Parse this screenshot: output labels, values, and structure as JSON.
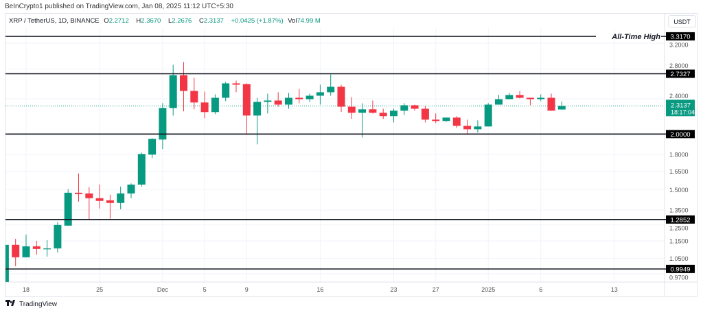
{
  "header": {
    "published": "BeInCrypto1 published on TradingView.com, Jan 08, 2025 11:12 UTC+5:30"
  },
  "legend": {
    "symbol": "XRP / TetherUS, 1D, BINANCE",
    "o_label": "O",
    "o": "2.2712",
    "h_label": "H",
    "h": "2.3670",
    "l_label": "L",
    "l": "2.2676",
    "c_label": "C",
    "c": "2.3137",
    "change": "+0.0425 (+1.87%)",
    "vol_label": "Vol",
    "vol": "74.99 M"
  },
  "currency_button": "USDT",
  "footer": {
    "brand": "TradingView",
    "logo_icon": "tradingview-logo-icon"
  },
  "colors": {
    "up": "#089981",
    "down": "#f23645",
    "level_line": "#131722",
    "price_badge": "#089981"
  },
  "chart_data": {
    "type": "candlestick",
    "title": "",
    "scale": "log",
    "ylim": [
      0.95,
      3.33
    ],
    "grid": true,
    "y_ticks": [
      "3.2000",
      "2.8000",
      "2.4000",
      "1.8000",
      "1.6500",
      "1.5000",
      "1.3500",
      "1.2500",
      "1.1500",
      "1.0500",
      "0.9700"
    ],
    "x_ticks": [
      {
        "label": "18",
        "date": "2024-11-18"
      },
      {
        "label": "25",
        "date": "2024-11-25"
      },
      {
        "label": "Dec",
        "date": "2024-12-01"
      },
      {
        "label": "5",
        "date": "2024-12-05"
      },
      {
        "label": "9",
        "date": "2024-12-09"
      },
      {
        "label": "16",
        "date": "2024-12-16"
      },
      {
        "label": "23",
        "date": "2024-12-23"
      },
      {
        "label": "27",
        "date": "2024-12-27"
      },
      {
        "label": "2025",
        "date": "2025-01-01"
      },
      {
        "label": "6",
        "date": "2025-01-06"
      },
      {
        "label": "13",
        "date": "2025-01-13"
      }
    ],
    "levels": [
      {
        "price": "3.3170",
        "label": "All-Time High"
      },
      {
        "price": "2.7327",
        "label": ""
      },
      {
        "price": "2.0000",
        "label": ""
      },
      {
        "price": "1.2852",
        "label": ""
      },
      {
        "price": "0.9949",
        "label": ""
      }
    ],
    "last_price": {
      "price": "2.3137",
      "countdown": "18:17:04"
    },
    "candles": [
      [
        "2024-11-16",
        0.93,
        1.272,
        0.93,
        1.127
      ],
      [
        "2024-11-17",
        1.127,
        1.163,
        1.009,
        1.057
      ],
      [
        "2024-11-18",
        1.057,
        1.189,
        1.057,
        1.119
      ],
      [
        "2024-11-19",
        1.119,
        1.151,
        1.072,
        1.103
      ],
      [
        "2024-11-20",
        1.103,
        1.155,
        1.061,
        1.107
      ],
      [
        "2024-11-21",
        1.107,
        1.267,
        1.084,
        1.249
      ],
      [
        "2024-11-22",
        1.245,
        1.503,
        1.245,
        1.476
      ],
      [
        "2024-11-23",
        1.476,
        1.631,
        1.41,
        1.466
      ],
      [
        "2024-11-24",
        1.471,
        1.519,
        1.281,
        1.435
      ],
      [
        "2024-11-25",
        1.435,
        1.54,
        1.36,
        1.415
      ],
      [
        "2024-11-26",
        1.42,
        1.46,
        1.29,
        1.4
      ],
      [
        "2024-11-27",
        1.4,
        1.524,
        1.355,
        1.471
      ],
      [
        "2024-11-28",
        1.471,
        1.549,
        1.435,
        1.54
      ],
      [
        "2024-11-29",
        1.54,
        1.817,
        1.524,
        1.804
      ],
      [
        "2024-11-30",
        1.798,
        1.958,
        1.766,
        1.951
      ],
      [
        "2024-12-01",
        1.944,
        2.347,
        1.85,
        2.289
      ],
      [
        "2024-12-02",
        2.289,
        2.862,
        2.201,
        2.713
      ],
      [
        "2024-12-03",
        2.713,
        2.903,
        2.249,
        2.5
      ],
      [
        "2024-12-04",
        2.5,
        2.675,
        2.273,
        2.355
      ],
      [
        "2024-12-05",
        2.355,
        2.492,
        2.17,
        2.241
      ],
      [
        "2024-12-06",
        2.241,
        2.456,
        2.217,
        2.413
      ],
      [
        "2024-12-07",
        2.413,
        2.619,
        2.371,
        2.6
      ],
      [
        "2024-12-08",
        2.6,
        2.637,
        2.483,
        2.582
      ],
      [
        "2024-12-09",
        2.591,
        2.6,
        2.0,
        2.201
      ],
      [
        "2024-12-10",
        2.201,
        2.413,
        1.896,
        2.362
      ],
      [
        "2024-12-11",
        2.362,
        2.465,
        2.225,
        2.379
      ],
      [
        "2024-12-12",
        2.379,
        2.483,
        2.304,
        2.329
      ],
      [
        "2024-12-13",
        2.329,
        2.474,
        2.28,
        2.413
      ],
      [
        "2024-12-14",
        2.413,
        2.527,
        2.346,
        2.396
      ],
      [
        "2024-12-15",
        2.396,
        2.465,
        2.362,
        2.439
      ],
      [
        "2024-12-16",
        2.439,
        2.582,
        2.329,
        2.483
      ],
      [
        "2024-12-17",
        2.483,
        2.723,
        2.439,
        2.554
      ],
      [
        "2024-12-18",
        2.554,
        2.582,
        2.241,
        2.304
      ],
      [
        "2024-12-19",
        2.304,
        2.422,
        2.163,
        2.233
      ],
      [
        "2024-12-20",
        2.233,
        2.346,
        1.965,
        2.273
      ],
      [
        "2024-12-21",
        2.273,
        2.379,
        2.225,
        2.233
      ],
      [
        "2024-12-22",
        2.233,
        2.28,
        2.163,
        2.194
      ],
      [
        "2024-12-23",
        2.194,
        2.28,
        2.124,
        2.257
      ],
      [
        "2024-12-24",
        2.257,
        2.346,
        2.209,
        2.321
      ],
      [
        "2024-12-25",
        2.321,
        2.329,
        2.257,
        2.28
      ],
      [
        "2024-12-26",
        2.28,
        2.312,
        2.124,
        2.155
      ],
      [
        "2024-12-27",
        2.155,
        2.225,
        2.117,
        2.14
      ],
      [
        "2024-12-28",
        2.14,
        2.178,
        2.132,
        2.178
      ],
      [
        "2024-12-29",
        2.178,
        2.194,
        2.065,
        2.087
      ],
      [
        "2024-12-30",
        2.087,
        2.155,
        1.993,
        2.05
      ],
      [
        "2024-12-31",
        2.05,
        2.147,
        2.014,
        2.08
      ],
      [
        "2025-01-01",
        2.08,
        2.347,
        2.08,
        2.329
      ],
      [
        "2025-01-02",
        2.329,
        2.448,
        2.329,
        2.396
      ],
      [
        "2025-01-03",
        2.396,
        2.474,
        2.396,
        2.448
      ],
      [
        "2025-01-04",
        2.448,
        2.5,
        2.405,
        2.413
      ],
      [
        "2025-01-05",
        2.413,
        2.413,
        2.321,
        2.396
      ],
      [
        "2025-01-06",
        2.396,
        2.456,
        2.371,
        2.413
      ],
      [
        "2025-01-07",
        2.413,
        2.465,
        2.257,
        2.257
      ],
      [
        "2025-01-08",
        2.2712,
        2.367,
        2.2676,
        2.3137
      ]
    ]
  }
}
